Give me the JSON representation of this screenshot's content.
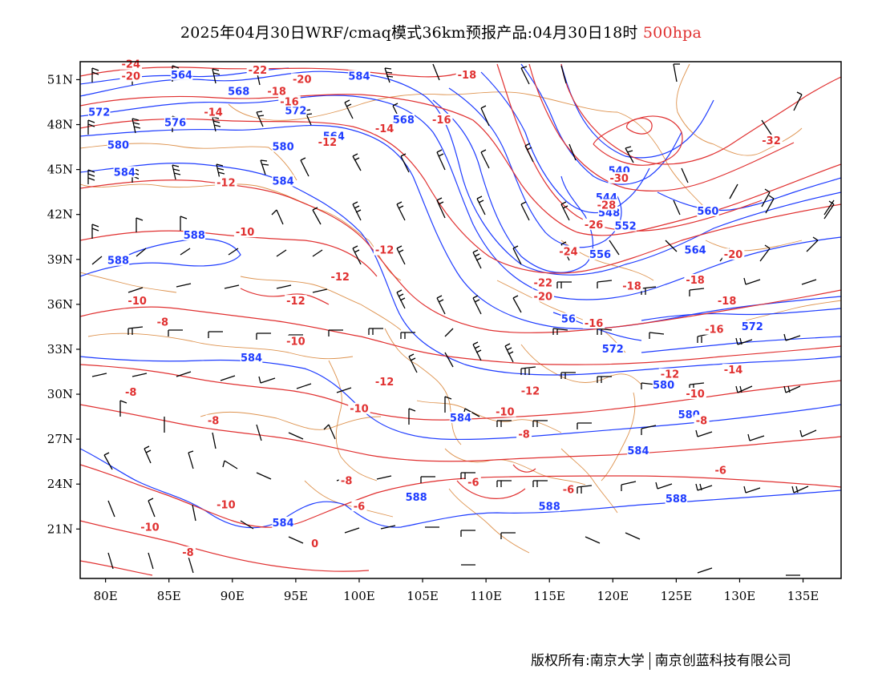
{
  "title": {
    "text": "2025年04月30日WRF/cmaq模式36km预报产品:04月30日18时",
    "level": "500hpa",
    "level_color": "#e03030"
  },
  "axes": {
    "lat_labels": [
      "51N",
      "48N",
      "45N",
      "42N",
      "39N",
      "36N",
      "33N",
      "30N",
      "27N",
      "24N",
      "21N"
    ],
    "lon_labels": [
      "80E",
      "85E",
      "90E",
      "95E",
      "100E",
      "105E",
      "110E",
      "115E",
      "120E",
      "125E",
      "130E",
      "135E"
    ]
  },
  "legend_colors": {
    "geopotential_height": "#1e3cff",
    "temperature": "#e03030",
    "boundaries": "#d88030",
    "wind_barbs": "#000000"
  },
  "height_labels": [
    {
      "text": "564",
      "lon": 86.0,
      "lat": 51.3
    },
    {
      "text": "568",
      "lon": 90.5,
      "lat": 50.2
    },
    {
      "text": "584",
      "lon": 100.0,
      "lat": 51.2
    },
    {
      "text": "572",
      "lon": 79.5,
      "lat": 48.8
    },
    {
      "text": "576",
      "lon": 85.5,
      "lat": 48.1
    },
    {
      "text": "572",
      "lon": 95.0,
      "lat": 48.9
    },
    {
      "text": "568",
      "lon": 103.5,
      "lat": 48.3
    },
    {
      "text": "580",
      "lon": 81.0,
      "lat": 46.6
    },
    {
      "text": "580",
      "lon": 94.0,
      "lat": 46.5
    },
    {
      "text": "564",
      "lon": 98.0,
      "lat": 47.2
    },
    {
      "text": "584",
      "lon": 81.5,
      "lat": 44.8
    },
    {
      "text": "584",
      "lon": 94.0,
      "lat": 44.2
    },
    {
      "text": "540",
      "lon": 120.5,
      "lat": 44.9
    },
    {
      "text": "544",
      "lon": 119.5,
      "lat": 43.1
    },
    {
      "text": "548",
      "lon": 119.7,
      "lat": 42.1
    },
    {
      "text": "552",
      "lon": 121.0,
      "lat": 41.2
    },
    {
      "text": "556",
      "lon": 119.0,
      "lat": 39.3
    },
    {
      "text": "560",
      "lon": 127.5,
      "lat": 42.2
    },
    {
      "text": "564",
      "lon": 126.5,
      "lat": 39.6
    },
    {
      "text": "588",
      "lon": 87.0,
      "lat": 40.6
    },
    {
      "text": "588",
      "lon": 81.0,
      "lat": 38.9
    },
    {
      "text": "572",
      "lon": 131.0,
      "lat": 34.5
    },
    {
      "text": "572",
      "lon": 120.0,
      "lat": 33.0
    },
    {
      "text": "56",
      "lon": 116.5,
      "lat": 35.0
    },
    {
      "text": "584",
      "lon": 91.5,
      "lat": 32.4
    },
    {
      "text": "580",
      "lon": 124.0,
      "lat": 30.6
    },
    {
      "text": "580",
      "lon": 126.0,
      "lat": 28.6
    },
    {
      "text": "584",
      "lon": 108.0,
      "lat": 28.4
    },
    {
      "text": "584",
      "lon": 122.0,
      "lat": 26.2
    },
    {
      "text": "588",
      "lon": 125.0,
      "lat": 23.0
    },
    {
      "text": "588",
      "lon": 115.0,
      "lat": 22.5
    },
    {
      "text": "588",
      "lon": 104.5,
      "lat": 23.1
    },
    {
      "text": "584",
      "lon": 94.0,
      "lat": 21.4
    }
  ],
  "temp_labels": [
    {
      "text": "-24",
      "lon": 82.0,
      "lat": 52.0
    },
    {
      "text": "-20",
      "lon": 82.0,
      "lat": 51.2
    },
    {
      "text": "-22",
      "lon": 92.0,
      "lat": 51.6
    },
    {
      "text": "-20",
      "lon": 95.5,
      "lat": 51.0
    },
    {
      "text": "-18",
      "lon": 93.5,
      "lat": 50.2
    },
    {
      "text": "-16",
      "lon": 94.5,
      "lat": 49.5
    },
    {
      "text": "-18",
      "lon": 108.5,
      "lat": 51.3
    },
    {
      "text": "-14",
      "lon": 88.5,
      "lat": 48.8
    },
    {
      "text": "-16",
      "lon": 106.5,
      "lat": 48.3
    },
    {
      "text": "-14",
      "lon": 102.0,
      "lat": 47.7
    },
    {
      "text": "-12",
      "lon": 97.5,
      "lat": 46.8
    },
    {
      "text": "-12",
      "lon": 89.5,
      "lat": 44.1
    },
    {
      "text": "-32",
      "lon": 132.5,
      "lat": 46.9
    },
    {
      "text": "-30",
      "lon": 120.5,
      "lat": 44.4
    },
    {
      "text": "-28",
      "lon": 119.5,
      "lat": 42.6
    },
    {
      "text": "-26",
      "lon": 118.5,
      "lat": 41.3
    },
    {
      "text": "-24",
      "lon": 116.5,
      "lat": 39.5
    },
    {
      "text": "-22",
      "lon": 114.5,
      "lat": 37.4
    },
    {
      "text": "-20",
      "lon": 114.5,
      "lat": 36.5
    },
    {
      "text": "-20",
      "lon": 129.5,
      "lat": 39.3
    },
    {
      "text": "-18",
      "lon": 121.5,
      "lat": 37.2
    },
    {
      "text": "-18",
      "lon": 126.5,
      "lat": 37.6
    },
    {
      "text": "-18",
      "lon": 129.0,
      "lat": 36.2
    },
    {
      "text": "-16",
      "lon": 118.5,
      "lat": 34.7
    },
    {
      "text": "-16",
      "lon": 128.0,
      "lat": 34.3
    },
    {
      "text": "-10",
      "lon": 91.0,
      "lat": 40.8
    },
    {
      "text": "-12",
      "lon": 102.0,
      "lat": 39.6
    },
    {
      "text": "-12",
      "lon": 98.5,
      "lat": 37.8
    },
    {
      "text": "-12",
      "lon": 95.0,
      "lat": 36.2
    },
    {
      "text": "-10",
      "lon": 82.5,
      "lat": 36.2
    },
    {
      "text": "-8",
      "lon": 84.5,
      "lat": 34.8
    },
    {
      "text": "-10",
      "lon": 95.0,
      "lat": 33.5
    },
    {
      "text": "-12",
      "lon": 102.0,
      "lat": 30.8
    },
    {
      "text": "-12",
      "lon": 113.5,
      "lat": 30.2
    },
    {
      "text": "-12",
      "lon": 124.5,
      "lat": 31.3
    },
    {
      "text": "-14",
      "lon": 129.5,
      "lat": 31.6
    },
    {
      "text": "-10",
      "lon": 126.5,
      "lat": 30.0
    },
    {
      "text": "-10",
      "lon": 111.5,
      "lat": 28.8
    },
    {
      "text": "-10",
      "lon": 100.0,
      "lat": 29.0
    },
    {
      "text": "-8",
      "lon": 82.0,
      "lat": 30.1
    },
    {
      "text": "-8",
      "lon": 88.5,
      "lat": 28.2
    },
    {
      "text": "-8",
      "lon": 113.0,
      "lat": 27.3
    },
    {
      "text": "-8",
      "lon": 127.0,
      "lat": 28.2
    },
    {
      "text": "-6",
      "lon": 128.5,
      "lat": 24.9
    },
    {
      "text": "-8",
      "lon": 99.0,
      "lat": 24.2
    },
    {
      "text": "-6",
      "lon": 109.0,
      "lat": 24.1
    },
    {
      "text": "-6",
      "lon": 116.5,
      "lat": 23.6
    },
    {
      "text": "-6",
      "lon": 100.0,
      "lat": 22.5
    },
    {
      "text": "-10",
      "lon": 89.5,
      "lat": 22.6
    },
    {
      "text": "-10",
      "lon": 83.5,
      "lat": 21.1
    },
    {
      "text": "-8",
      "lon": 86.5,
      "lat": 19.4
    },
    {
      "text": "0",
      "lon": 96.5,
      "lat": 20.0
    }
  ],
  "credit": {
    "left": "版权所有:南京大学",
    "right": "南京创蓝科技有限公司"
  }
}
